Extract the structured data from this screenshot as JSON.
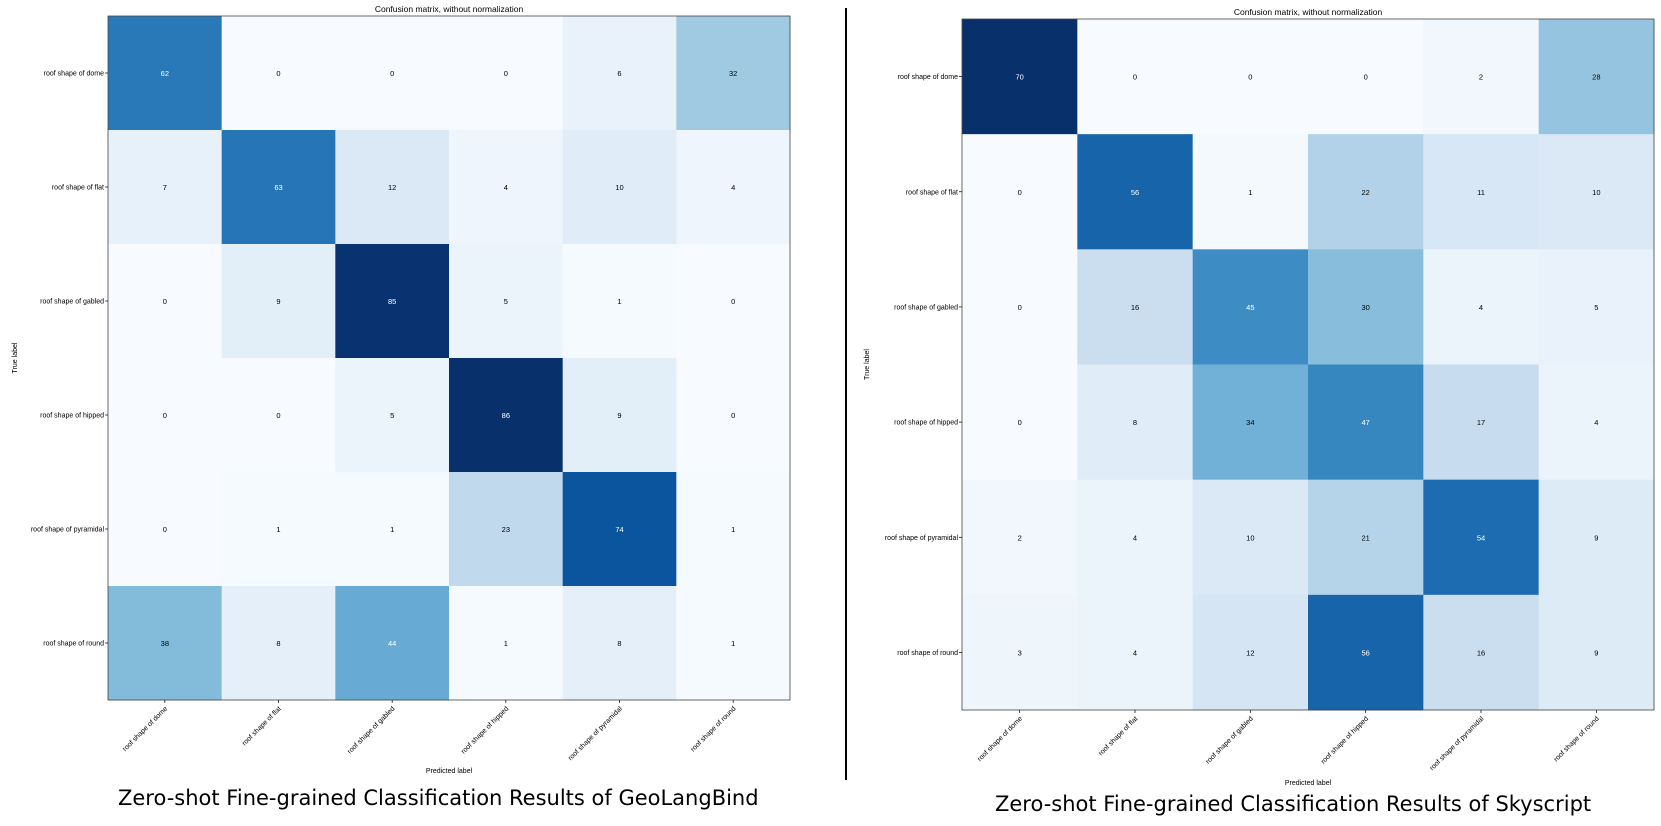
{
  "chart_data": [
    {
      "type": "heatmap",
      "title": "Confusion matrix, without normalization",
      "xlabel": "Predicted label",
      "ylabel": "True label",
      "caption": "Zero-shot Fine-grained Classification Results of GeoLangBind",
      "row_labels": [
        "roof shape of dome",
        "roof shape of flat",
        "roof shape of gabled",
        "roof shape of hipped",
        "roof shape of pyramidal",
        "roof shape of round"
      ],
      "col_labels": [
        "roof shape of dome",
        "roof shape of flat",
        "roof shape of gabled",
        "roof shape of hipped",
        "roof shape of pyramidal",
        "roof shape of round"
      ],
      "matrix": [
        [
          62,
          0,
          0,
          0,
          6,
          32
        ],
        [
          7,
          63,
          12,
          4,
          10,
          4
        ],
        [
          0,
          9,
          85,
          5,
          1,
          0
        ],
        [
          0,
          0,
          5,
          86,
          9,
          0
        ],
        [
          0,
          1,
          1,
          23,
          74,
          1
        ],
        [
          38,
          8,
          44,
          1,
          8,
          1
        ]
      ],
      "vmin": 0,
      "vmax": 86,
      "colormap": "Blues"
    },
    {
      "type": "heatmap",
      "title": "Confusion matrix, without normalization",
      "xlabel": "Predicted label",
      "ylabel": "True label",
      "caption": "Zero-shot Fine-grained Classification Results of Skyscript",
      "row_labels": [
        "roof shape of dome",
        "roof shape of flat",
        "roof shape of gabled",
        "roof shape of hipped",
        "roof shape of pyramidal",
        "roof shape of round"
      ],
      "col_labels": [
        "roof shape of dome",
        "roof shape of flat",
        "roof shape of gabled",
        "roof shape of hipped",
        "roof shape of pyramidal",
        "roof shape of round"
      ],
      "matrix": [
        [
          70,
          0,
          0,
          0,
          2,
          28
        ],
        [
          0,
          56,
          1,
          22,
          11,
          10
        ],
        [
          0,
          16,
          45,
          30,
          4,
          5
        ],
        [
          0,
          8,
          34,
          47,
          17,
          4
        ],
        [
          2,
          4,
          10,
          21,
          54,
          9
        ],
        [
          3,
          4,
          12,
          56,
          16,
          9
        ]
      ],
      "vmin": 0,
      "vmax": 70,
      "colormap": "Blues"
    }
  ]
}
